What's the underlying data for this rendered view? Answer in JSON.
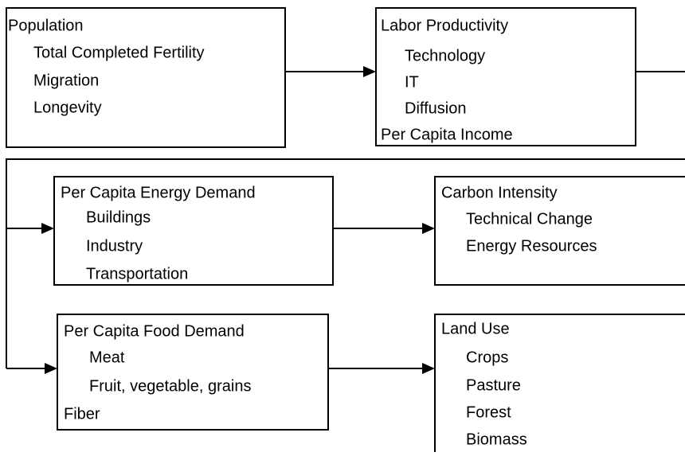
{
  "nodes": [
    {
      "title": "Population",
      "items": [
        "Total Completed Fertility",
        "Migration",
        "Longevity"
      ]
    },
    {
      "title": "Labor Productivity",
      "items": [
        "Technology",
        "IT",
        "Diffusion"
      ],
      "footer": "Per Capita Income"
    },
    {
      "title": "Per Capita Energy Demand",
      "items": [
        "Buildings",
        "Industry",
        "Transportation"
      ]
    },
    {
      "title": "Carbon Intensity",
      "items": [
        "Technical Change",
        "Energy Resources"
      ]
    },
    {
      "title": "Per Capita Food Demand",
      "items": [
        "Meat",
        "Fruit, vegetable, grains"
      ],
      "footer": "Fiber"
    },
    {
      "title": "Land Use",
      "items": [
        "Crops",
        "Pasture",
        "Forest",
        "Biomass"
      ]
    }
  ]
}
